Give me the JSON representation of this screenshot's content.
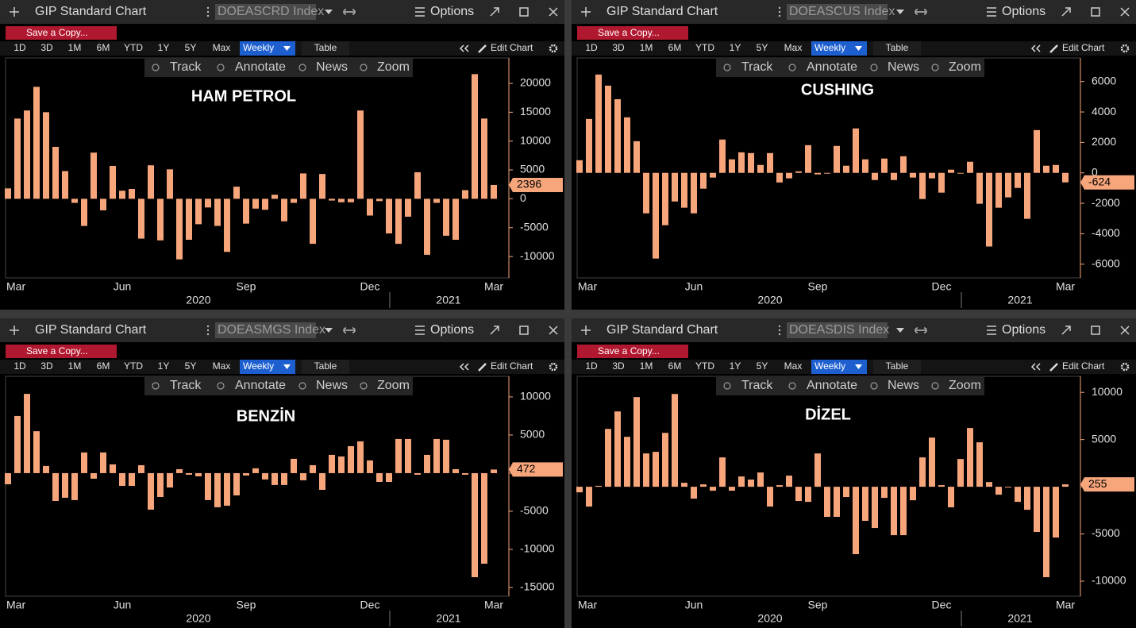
{
  "panels": [
    {
      "window_title": "GIP Standard Chart",
      "ticker": "DOEASCRD Index",
      "options": "Options",
      "save": "Save a Copy...",
      "ranges": [
        "1D",
        "3D",
        "1M",
        "6M",
        "YTD",
        "1Y",
        "5Y",
        "Max"
      ],
      "interval": "Weekly",
      "table": "Table",
      "edit_chart": "Edit Chart",
      "tools": [
        "Track",
        "Annotate",
        "News",
        "Zoom"
      ]
    },
    {
      "window_title": "GIP Standard Chart",
      "ticker": "DOEASCUS Index",
      "options": "Options",
      "save": "Save a Copy...",
      "ranges": [
        "1D",
        "3D",
        "1M",
        "6M",
        "YTD",
        "1Y",
        "5Y",
        "Max"
      ],
      "interval": "Weekly",
      "table": "Table",
      "edit_chart": "Edit Chart",
      "tools": [
        "Track",
        "Annotate",
        "News",
        "Zoom"
      ]
    },
    {
      "window_title": "GIP Standard Chart",
      "ticker": "DOEASMGS Index",
      "options": "Options",
      "save": "Save a Copy...",
      "ranges": [
        "1D",
        "3D",
        "1M",
        "6M",
        "YTD",
        "1Y",
        "5Y",
        "Max"
      ],
      "interval": "Weekly",
      "table": "Table",
      "edit_chart": "Edit Chart",
      "tools": [
        "Track",
        "Annotate",
        "News",
        "Zoom"
      ]
    },
    {
      "window_title": "GIP Standard Chart",
      "ticker": "DOEASDIS Index",
      "options": "Options",
      "save": "Save a Copy...",
      "ranges": [
        "1D",
        "3D",
        "1M",
        "6M",
        "YTD",
        "1Y",
        "5Y",
        "Max"
      ],
      "interval": "Weekly",
      "table": "Table",
      "edit_chart": "Edit Chart",
      "tools": [
        "Track",
        "Annotate",
        "News",
        "Zoom"
      ]
    }
  ],
  "chart_data": [
    {
      "type": "bar",
      "title": "HAM PETROL",
      "color": "#f7a67c",
      "categories": [
        "Mar",
        null,
        null,
        null,
        null,
        null,
        null,
        null,
        null,
        null,
        null,
        null,
        "Jun",
        null,
        null,
        null,
        null,
        null,
        null,
        null,
        null,
        null,
        null,
        null,
        null,
        "Sep",
        null,
        null,
        null,
        null,
        null,
        null,
        null,
        null,
        null,
        null,
        null,
        null,
        "Dec",
        null,
        null,
        null,
        null,
        null,
        null,
        null,
        null,
        null,
        null,
        null,
        null,
        "Mar"
      ],
      "year_labels": [
        "2020",
        "2021"
      ],
      "values": [
        1800,
        13900,
        15300,
        19400,
        15000,
        9000,
        4800,
        -700,
        -4700,
        8000,
        -2000,
        5700,
        1400,
        1700,
        -6900,
        5800,
        -7200,
        5100,
        -10500,
        -7100,
        -4400,
        -1500,
        -4700,
        -9200,
        2100,
        -4300,
        -1700,
        -1900,
        700,
        -3900,
        -700,
        4400,
        -7800,
        4300,
        -300,
        -600,
        -600,
        15300,
        -2900,
        -400,
        -6000,
        -7800,
        -3100,
        4600,
        -9700,
        -700,
        -6400,
        -7100,
        1500,
        21600,
        13900,
        2396
      ],
      "ylim": [
        -13700,
        24400
      ],
      "yticks": [
        -10000,
        -5000,
        0,
        5000,
        10000,
        15000,
        20000
      ]
    },
    {
      "type": "bar",
      "title": "CUSHING",
      "color": "#f7a67c",
      "categories": [
        "Mar",
        null,
        null,
        null,
        null,
        null,
        null,
        null,
        null,
        null,
        null,
        null,
        "Jun",
        null,
        null,
        null,
        null,
        null,
        null,
        null,
        null,
        null,
        null,
        null,
        null,
        "Sep",
        null,
        null,
        null,
        null,
        null,
        null,
        null,
        null,
        null,
        null,
        null,
        null,
        "Dec",
        null,
        null,
        null,
        null,
        null,
        null,
        null,
        null,
        null,
        null,
        null,
        null,
        "Mar"
      ],
      "year_labels": [
        "2020",
        "2021"
      ],
      "values": [
        830,
        3540,
        6460,
        5730,
        4840,
        3650,
        2080,
        -2660,
        -5630,
        -3440,
        -1880,
        -2290,
        -2660,
        -1040,
        -310,
        2190,
        890,
        1350,
        1300,
        520,
        1300,
        -630,
        -360,
        100,
        1820,
        -100,
        -50,
        1770,
        470,
        2920,
        890,
        -470,
        940,
        -470,
        1090,
        -310,
        -1720,
        -360,
        -1300,
        210,
        -50,
        730,
        -2030,
        -4840,
        -2290,
        -1610,
        -990,
        -3020,
        2810,
        470,
        520,
        -624
      ],
      "ylim": [
        -6900,
        7550
      ],
      "yticks": [
        -6000,
        -4000,
        -2000,
        0,
        2000,
        4000,
        6000
      ]
    },
    {
      "type": "bar",
      "title": "BENZİN",
      "color": "#f7a67c",
      "categories": [
        "Mar",
        null,
        null,
        null,
        null,
        null,
        null,
        null,
        null,
        null,
        null,
        null,
        "Jun",
        null,
        null,
        null,
        null,
        null,
        null,
        null,
        null,
        null,
        null,
        null,
        null,
        "Sep",
        null,
        null,
        null,
        null,
        null,
        null,
        null,
        null,
        null,
        null,
        null,
        null,
        "Dec",
        null,
        null,
        null,
        null,
        null,
        null,
        null,
        null,
        null,
        null,
        null,
        null,
        "Mar"
      ],
      "year_labels": [
        "2020",
        "2021"
      ],
      "values": [
        -1460,
        7500,
        10400,
        5500,
        940,
        -3650,
        -3230,
        -3540,
        2710,
        -730,
        2710,
        1150,
        -1670,
        -1670,
        1040,
        -4790,
        -3130,
        -1880,
        520,
        -210,
        -420,
        -3540,
        -4480,
        -4270,
        -2920,
        -310,
        630,
        -830,
        -1560,
        -1560,
        1880,
        -940,
        1040,
        -2190,
        2400,
        2190,
        3540,
        4170,
        1670,
        -1150,
        -1150,
        4480,
        4480,
        -210,
        2400,
        4480,
        4380,
        520,
        -210,
        -13650,
        -11880,
        472
      ],
      "ylim": [
        -16150,
        12700
      ],
      "yticks": [
        -15000,
        -10000,
        -5000,
        0,
        5000,
        10000
      ]
    },
    {
      "type": "bar",
      "title": "DİZEL",
      "color": "#f7a67c",
      "categories": [
        "Mar",
        null,
        null,
        null,
        null,
        null,
        null,
        null,
        null,
        null,
        null,
        null,
        "Jun",
        null,
        null,
        null,
        null,
        null,
        null,
        null,
        null,
        null,
        null,
        null,
        null,
        "Sep",
        null,
        null,
        null,
        null,
        null,
        null,
        null,
        null,
        null,
        null,
        null,
        null,
        "Dec",
        null,
        null,
        null,
        null,
        null,
        null,
        null,
        null,
        null,
        null,
        null,
        null,
        "Mar"
      ],
      "year_labels": [
        "2020",
        "2021"
      ],
      "values": [
        -590,
        -2100,
        100,
        6130,
        7980,
        5290,
        9500,
        3530,
        3700,
        5710,
        9830,
        420,
        -1260,
        250,
        -420,
        3110,
        -420,
        1090,
        760,
        1510,
        -2100,
        170,
        1180,
        -1510,
        -1600,
        3530,
        -3190,
        -3190,
        -1090,
        -7140,
        -3610,
        -4370,
        -1180,
        -5130,
        -5130,
        -1430,
        3110,
        5210,
        170,
        -2180,
        2940,
        6220,
        4710,
        500,
        -840,
        -80,
        -1600,
        -2440,
        -4790,
        -9580,
        -5380,
        255
      ],
      "ylim": [
        -11600,
        11700
      ],
      "yticks": [
        -10000,
        -5000,
        0,
        5000,
        10000
      ]
    }
  ]
}
